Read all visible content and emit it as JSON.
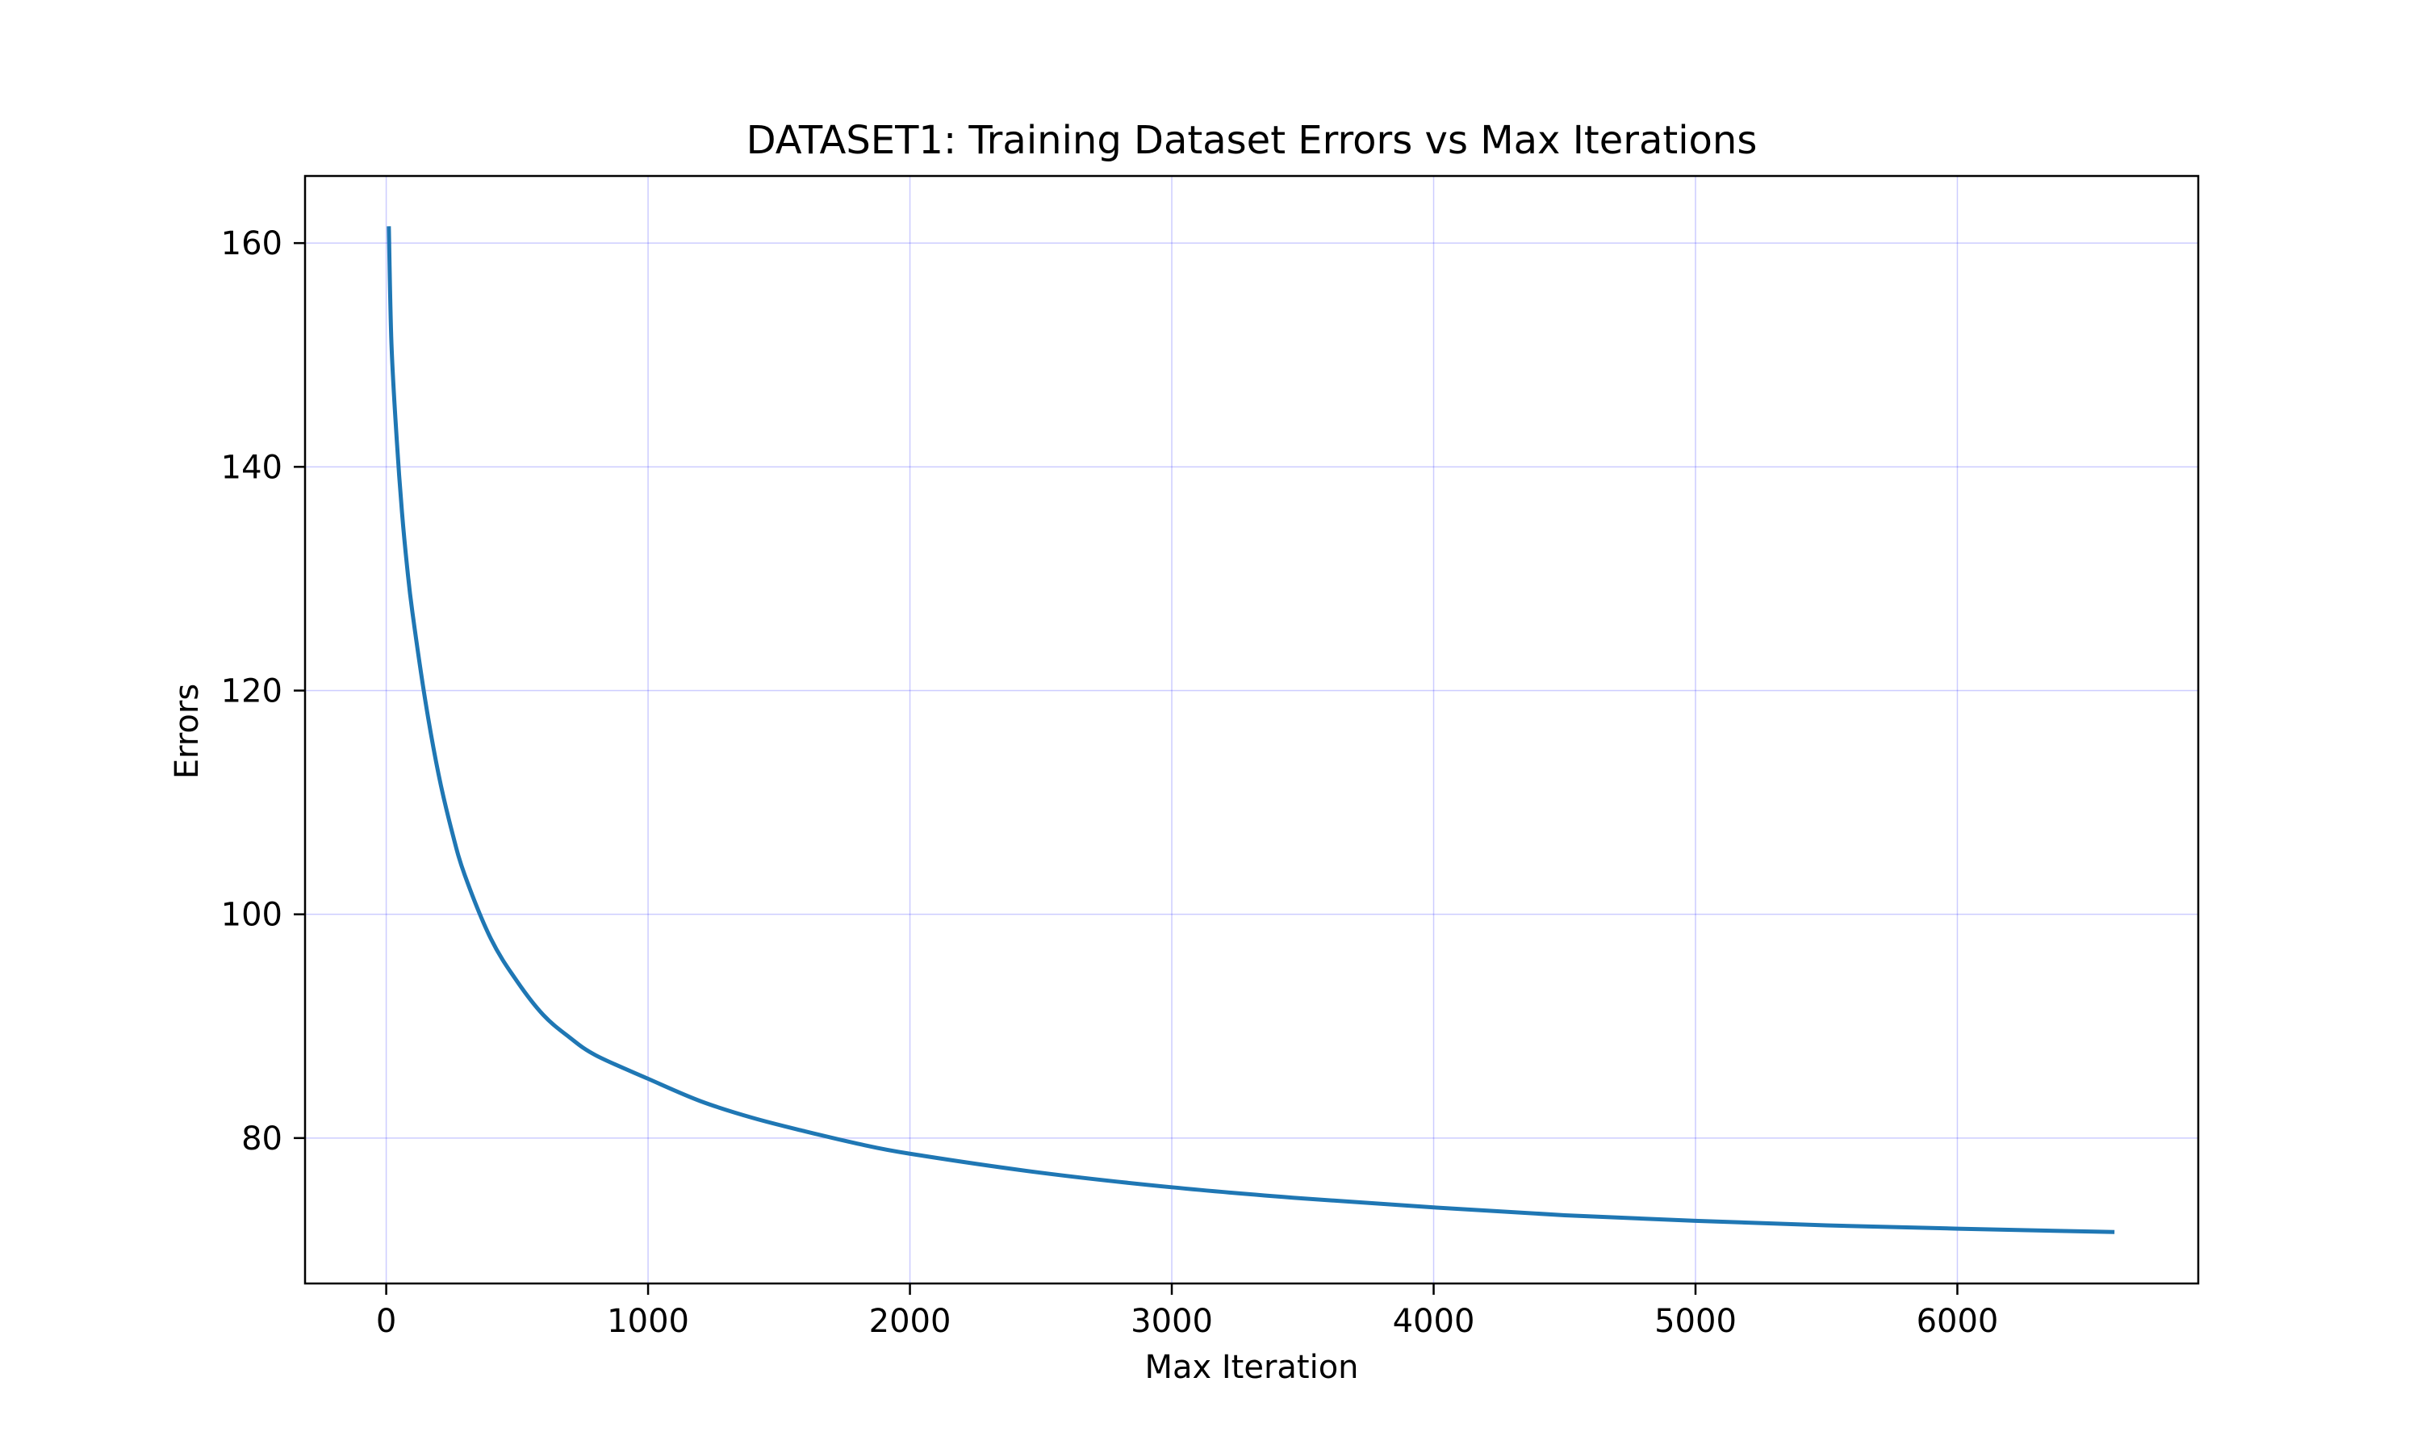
{
  "chart_data": {
    "type": "line",
    "title": "DATASET1: Training Dataset Errors vs Max Iterations",
    "xlabel": "Max Iteration",
    "ylabel": "Errors",
    "xlim": [
      -310,
      6920
    ],
    "ylim": [
      67,
      166
    ],
    "xticks": [
      0,
      1000,
      2000,
      3000,
      4000,
      5000,
      6000
    ],
    "xtick_labels": [
      "0",
      "1000",
      "2000",
      "3000",
      "4000",
      "5000",
      "6000"
    ],
    "yticks": [
      80,
      100,
      120,
      140,
      160
    ],
    "ytick_labels": [
      "80",
      "100",
      "120",
      "140",
      "160"
    ],
    "grid": true,
    "grid_color": "#0000ff",
    "line_color": "#1f77b4",
    "series": [
      {
        "x": [
          10,
          20,
          40,
          60,
          80,
          100,
          150,
          200,
          250,
          300,
          400,
          500,
          600,
          700,
          800,
          1000,
          1200,
          1400,
          1600,
          1800,
          2000,
          2500,
          3000,
          3500,
          4000,
          4500,
          5000,
          5500,
          6000,
          6600
        ],
        "values": [
          161.5,
          151.0,
          142.5,
          136.0,
          131.0,
          127.0,
          119.0,
          112.5,
          107.5,
          103.5,
          97.8,
          94.0,
          91.0,
          89.0,
          87.4,
          85.3,
          83.3,
          81.8,
          80.6,
          79.5,
          78.6,
          76.9,
          75.6,
          74.6,
          73.8,
          73.1,
          72.6,
          72.2,
          71.9,
          71.6
        ]
      }
    ]
  }
}
